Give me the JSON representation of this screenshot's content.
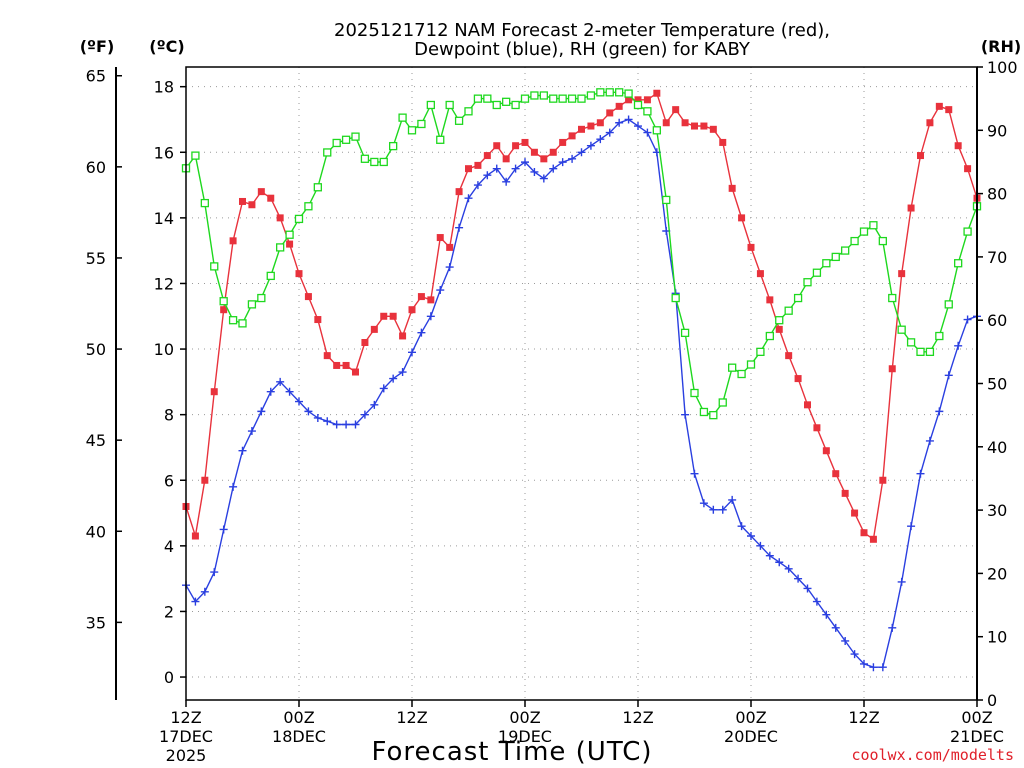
{
  "chart_data": {
    "type": "line",
    "title_line1": "2025121712 NAM Forecast 2-meter Temperature (red),",
    "title_line2": "Dewpoint (blue), RH (green) for KABY",
    "unit_f": "(ºF)",
    "unit_c": "(ºC)",
    "unit_rh": "(RH)",
    "xlabel": "Forecast Time (UTC)",
    "credit": "coolwx.com/modelts",
    "left_axis_c": {
      "range": [
        -0.7,
        18.6
      ],
      "ticks": [
        0,
        2,
        4,
        6,
        8,
        10,
        12,
        14,
        16,
        18
      ]
    },
    "left_axis_f": {
      "ticks": [
        35,
        40,
        45,
        50,
        55,
        60,
        65
      ]
    },
    "right_axis_rh": {
      "range": [
        0,
        100
      ],
      "ticks": [
        0,
        10,
        20,
        30,
        40,
        50,
        60,
        70,
        80,
        90,
        100
      ]
    },
    "x_range_hours": [
      0,
      84
    ],
    "x_ticks": [
      {
        "hour": 0,
        "line1": "12Z",
        "line2": "17DEC",
        "line3": "2025"
      },
      {
        "hour": 12,
        "line1": "00Z",
        "line2": "18DEC",
        "line3": ""
      },
      {
        "hour": 24,
        "line1": "12Z",
        "line2": "",
        "line3": ""
      },
      {
        "hour": 36,
        "line1": "00Z",
        "line2": "19DEC",
        "line3": ""
      },
      {
        "hour": 48,
        "line1": "12Z",
        "line2": "",
        "line3": ""
      },
      {
        "hour": 60,
        "line1": "00Z",
        "line2": "20DEC",
        "line3": ""
      },
      {
        "hour": 72,
        "line1": "12Z",
        "line2": "",
        "line3": ""
      },
      {
        "hour": 84,
        "line1": "00Z",
        "line2": "21DEC",
        "line3": ""
      }
    ],
    "series": [
      {
        "name": "2-meter Temperature",
        "color": "#e8323c",
        "axis": "c",
        "marker": "filled-square",
        "hours": [
          0,
          1,
          2,
          3,
          4,
          5,
          6,
          7,
          8,
          9,
          10,
          11,
          12,
          13,
          14,
          15,
          16,
          17,
          18,
          19,
          20,
          21,
          22,
          23,
          24,
          25,
          26,
          27,
          28,
          29,
          30,
          31,
          32,
          33,
          34,
          35,
          36,
          37,
          38,
          39,
          40,
          41,
          42,
          43,
          44,
          45,
          46,
          47,
          48,
          49,
          50,
          51,
          52,
          53,
          54,
          55,
          56,
          57,
          58,
          59,
          60,
          61,
          62,
          63,
          64,
          65,
          66,
          67,
          68,
          69,
          70,
          71,
          72,
          73,
          74,
          75,
          76,
          77,
          78,
          79,
          80,
          81,
          82,
          83,
          84
        ],
        "values": [
          5.2,
          4.3,
          6.0,
          8.7,
          11.2,
          13.3,
          14.5,
          14.4,
          14.8,
          14.6,
          14.0,
          13.2,
          12.3,
          11.6,
          10.9,
          9.8,
          9.5,
          9.5,
          9.3,
          10.2,
          10.6,
          11.0,
          11.0,
          10.4,
          11.2,
          11.6,
          11.5,
          13.4,
          13.1,
          14.8,
          15.5,
          15.6,
          15.9,
          16.2,
          15.8,
          16.2,
          16.3,
          16.0,
          15.8,
          16.0,
          16.3,
          16.5,
          16.7,
          16.8,
          16.9,
          17.2,
          17.4,
          17.6,
          17.6,
          17.6,
          17.8,
          16.9,
          17.3,
          16.9,
          16.8,
          16.8,
          16.7,
          16.3,
          14.9,
          14.0,
          13.1,
          12.3,
          11.5,
          10.6,
          9.8,
          9.1,
          8.3,
          7.6,
          6.9,
          6.2,
          5.6,
          5.0,
          4.4,
          4.2,
          6.0,
          9.4,
          12.3,
          14.3,
          15.9,
          16.9,
          17.4,
          17.3,
          16.2,
          15.5,
          14.6
        ]
      },
      {
        "name": "Dewpoint",
        "color": "#2a3fe0",
        "axis": "c",
        "marker": "plus",
        "hours": [
          0,
          1,
          2,
          3,
          4,
          5,
          6,
          7,
          8,
          9,
          10,
          11,
          12,
          13,
          14,
          15,
          16,
          17,
          18,
          19,
          20,
          21,
          22,
          23,
          24,
          25,
          26,
          27,
          28,
          29,
          30,
          31,
          32,
          33,
          34,
          35,
          36,
          37,
          38,
          39,
          40,
          41,
          42,
          43,
          44,
          45,
          46,
          47,
          48,
          49,
          50,
          51,
          52,
          53,
          54,
          55,
          56,
          57,
          58,
          59,
          60,
          61,
          62,
          63,
          64,
          65,
          66,
          67,
          68,
          69,
          70,
          71,
          72,
          73,
          74,
          75,
          76,
          77,
          78,
          79,
          80,
          81,
          82,
          83,
          84
        ],
        "values": [
          2.8,
          2.3,
          2.6,
          3.2,
          4.5,
          5.8,
          6.9,
          7.5,
          8.1,
          8.7,
          9.0,
          8.7,
          8.4,
          8.1,
          7.9,
          7.8,
          7.7,
          7.7,
          7.7,
          8.0,
          8.3,
          8.8,
          9.1,
          9.3,
          9.9,
          10.5,
          11.0,
          11.8,
          12.5,
          13.7,
          14.6,
          15.0,
          15.3,
          15.5,
          15.1,
          15.5,
          15.7,
          15.4,
          15.2,
          15.5,
          15.7,
          15.8,
          16.0,
          16.2,
          16.4,
          16.6,
          16.9,
          17.0,
          16.8,
          16.6,
          16.0,
          13.6,
          11.7,
          8.0,
          6.2,
          5.3,
          5.1,
          5.1,
          5.4,
          4.6,
          4.3,
          4.0,
          3.7,
          3.5,
          3.3,
          3.0,
          2.7,
          2.3,
          1.9,
          1.5,
          1.1,
          0.7,
          0.4,
          0.3,
          0.3,
          1.5,
          2.9,
          4.6,
          6.2,
          7.2,
          8.1,
          9.2,
          10.1,
          10.9,
          11.0
        ]
      },
      {
        "name": "RH",
        "color": "#1ed81e",
        "axis": "rh",
        "marker": "open-square",
        "hours": [
          0,
          1,
          2,
          3,
          4,
          5,
          6,
          7,
          8,
          9,
          10,
          11,
          12,
          13,
          14,
          15,
          16,
          17,
          18,
          19,
          20,
          21,
          22,
          23,
          24,
          25,
          26,
          27,
          28,
          29,
          30,
          31,
          32,
          33,
          34,
          35,
          36,
          37,
          38,
          39,
          40,
          41,
          42,
          43,
          44,
          45,
          46,
          47,
          48,
          49,
          50,
          51,
          52,
          53,
          54,
          55,
          56,
          57,
          58,
          59,
          60,
          61,
          62,
          63,
          64,
          65,
          66,
          67,
          68,
          69,
          70,
          71,
          72,
          73,
          74,
          75,
          76,
          77,
          78,
          79,
          80,
          81,
          82,
          83,
          84
        ],
        "values": [
          84.0,
          86.0,
          78.5,
          68.5,
          63.0,
          60.0,
          59.5,
          62.5,
          63.5,
          67.0,
          71.5,
          73.5,
          76.0,
          78.0,
          81.0,
          86.5,
          88.0,
          88.5,
          89.0,
          85.5,
          85.0,
          85.0,
          87.5,
          92.0,
          90.0,
          91.0,
          94.0,
          88.5,
          94.0,
          91.5,
          93.0,
          95.0,
          95.0,
          94.0,
          94.5,
          94.0,
          95.0,
          95.5,
          95.5,
          95.0,
          95.0,
          95.0,
          95.0,
          95.5,
          96.0,
          96.0,
          96.0,
          95.8,
          94.0,
          93.0,
          90.0,
          79.0,
          63.5,
          58.0,
          48.5,
          45.5,
          45.0,
          47.0,
          52.5,
          51.5,
          53.0,
          55.0,
          57.5,
          60.0,
          61.5,
          63.5,
          66.0,
          67.5,
          69.0,
          70.0,
          71.0,
          72.5,
          74.0,
          75.0,
          72.5,
          63.5,
          58.5,
          56.5,
          55.0,
          55.0,
          57.5,
          62.5,
          69.0,
          74.0,
          78.0
        ]
      }
    ]
  }
}
